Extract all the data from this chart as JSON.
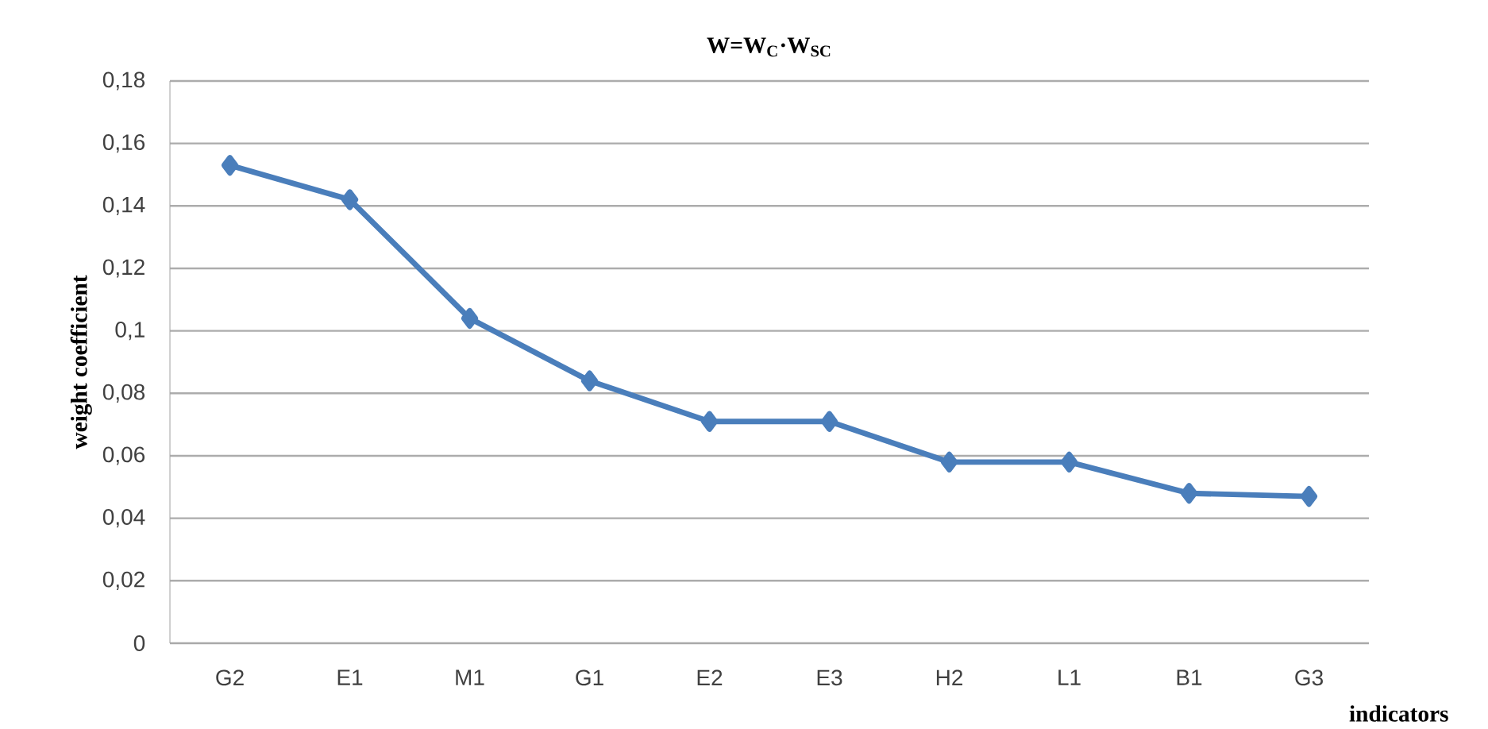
{
  "chart_data": {
    "type": "line",
    "title": "W=W$_{C}$·W$_{SC}$",
    "xlabel": "indicators",
    "ylabel": "weight coefficient",
    "categories": [
      "G2",
      "E1",
      "M1",
      "G1",
      "E2",
      "E3",
      "H2",
      "L1",
      "B1",
      "G3"
    ],
    "series": [
      {
        "color": "#4a7ebb",
        "values": [
          0.153,
          0.142,
          0.104,
          0.084,
          0.071,
          0.071,
          0.058,
          0.058,
          0.048,
          0.047
        ]
      }
    ],
    "ylim": [
      0,
      0.18
    ],
    "yticks": [
      {
        "value": 0,
        "label": "0"
      },
      {
        "value": 0.02,
        "label": "0,02"
      },
      {
        "value": 0.04,
        "label": "0,04"
      },
      {
        "value": 0.06,
        "label": "0,06"
      },
      {
        "value": 0.08,
        "label": "0,08"
      },
      {
        "value": 0.1,
        "label": "0,1"
      },
      {
        "value": 0.12,
        "label": "0,12"
      },
      {
        "value": 0.14,
        "label": "0,14"
      },
      {
        "value": 0.16,
        "label": "0,16"
      },
      {
        "value": 0.18,
        "label": "0,18"
      }
    ],
    "grid": "y",
    "marker": "diamond",
    "line_style": "solid"
  }
}
